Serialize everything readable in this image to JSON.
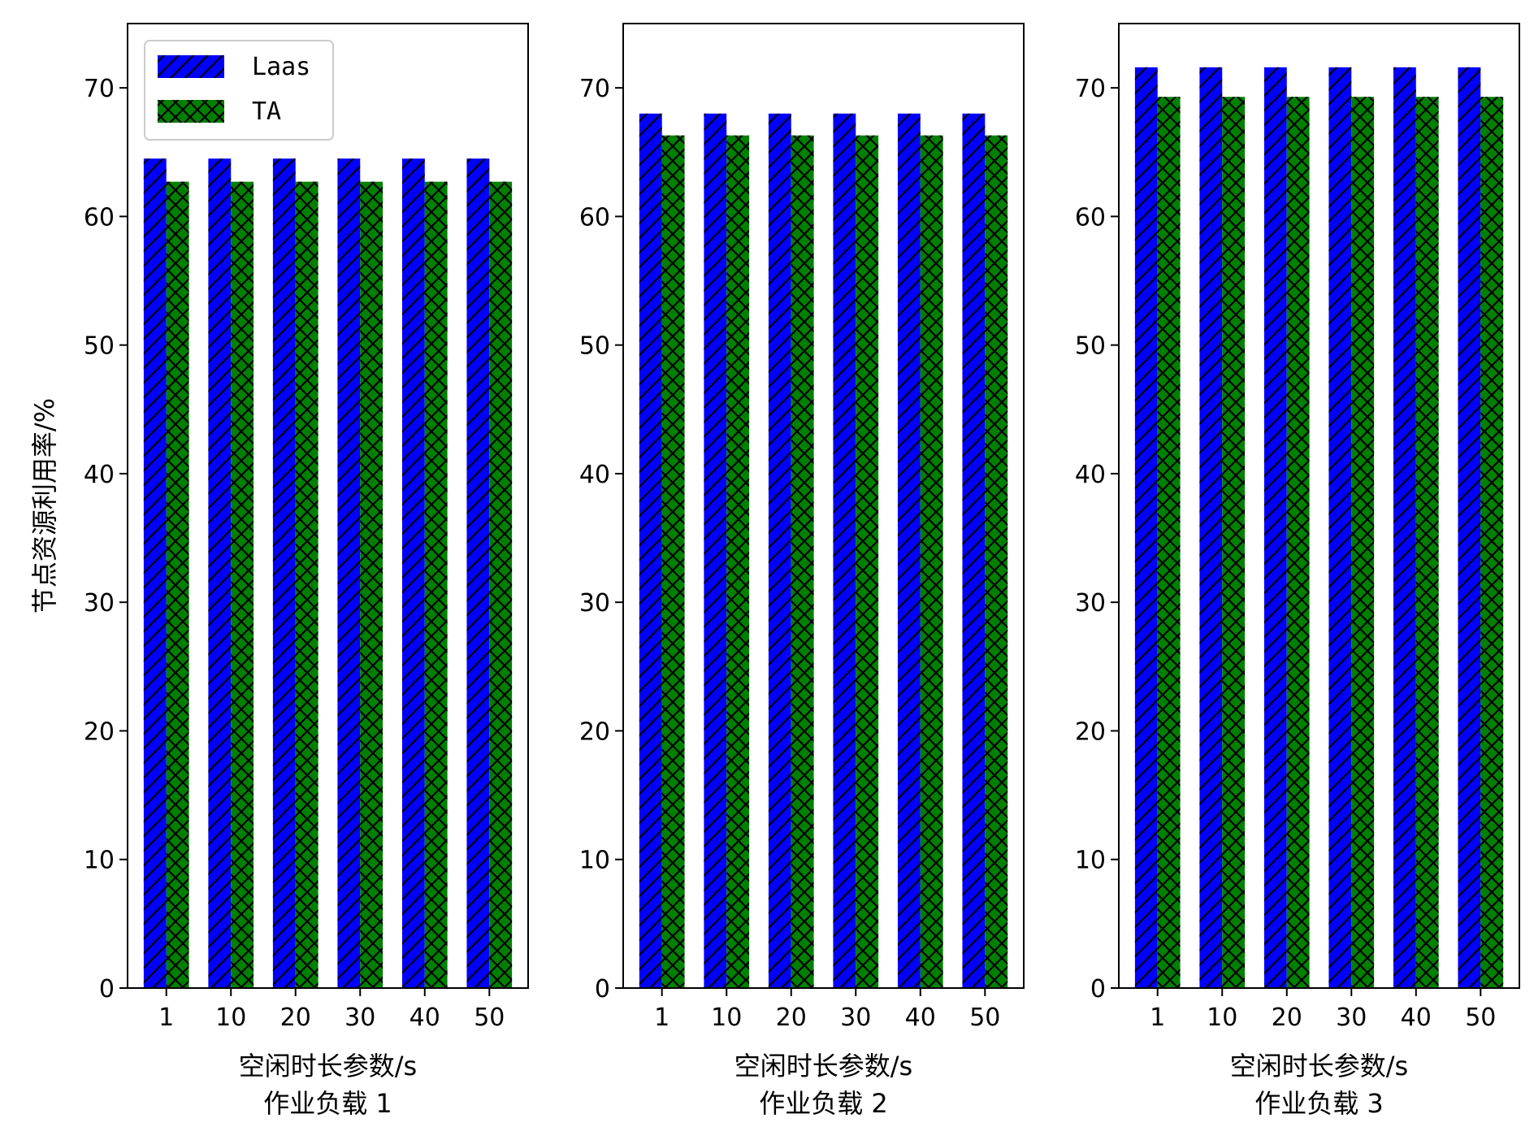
{
  "shared": {
    "ylabel": "节点资源利用率/%",
    "xlabel": "空闲时长参数/s",
    "legend": [
      "Laas",
      "TA"
    ],
    "colors": {
      "Laas": "#0000ff",
      "TA": "#008000"
    },
    "legend_placement": "top-left (first panel)"
  },
  "chart_data": [
    {
      "type": "bar",
      "subtitle": "作业负载 1",
      "categories": [
        "1",
        "10",
        "20",
        "30",
        "40",
        "50"
      ],
      "series": [
        {
          "name": "Laas",
          "values": [
            64.5,
            64.5,
            64.5,
            64.5,
            64.5,
            64.5
          ]
        },
        {
          "name": "TA",
          "values": [
            62.7,
            62.7,
            62.7,
            62.7,
            62.7,
            62.7
          ]
        }
      ],
      "xlabel": "空闲时长参数/s",
      "ylabel": "节点资源利用率/%",
      "ylim": [
        0,
        75
      ],
      "yticks": [
        0,
        10,
        20,
        30,
        40,
        50,
        60,
        70
      ],
      "grid": false
    },
    {
      "type": "bar",
      "subtitle": "作业负载 2",
      "categories": [
        "1",
        "10",
        "20",
        "30",
        "40",
        "50"
      ],
      "series": [
        {
          "name": "Laas",
          "values": [
            68.0,
            68.0,
            68.0,
            68.0,
            68.0,
            68.0
          ]
        },
        {
          "name": "TA",
          "values": [
            66.3,
            66.3,
            66.3,
            66.3,
            66.3,
            66.3
          ]
        }
      ],
      "xlabel": "空闲时长参数/s",
      "ylim": [
        0,
        75
      ],
      "yticks": [
        0,
        10,
        20,
        30,
        40,
        50,
        60,
        70
      ],
      "grid": false
    },
    {
      "type": "bar",
      "subtitle": "作业负载 3",
      "categories": [
        "1",
        "10",
        "20",
        "30",
        "40",
        "50"
      ],
      "series": [
        {
          "name": "Laas",
          "values": [
            71.6,
            71.6,
            71.6,
            71.6,
            71.6,
            71.6
          ]
        },
        {
          "name": "TA",
          "values": [
            69.3,
            69.3,
            69.3,
            69.3,
            69.3,
            69.3
          ]
        }
      ],
      "xlabel": "空闲时长参数/s",
      "ylim": [
        0,
        75
      ],
      "yticks": [
        0,
        10,
        20,
        30,
        40,
        50,
        60,
        70
      ],
      "grid": false
    }
  ]
}
